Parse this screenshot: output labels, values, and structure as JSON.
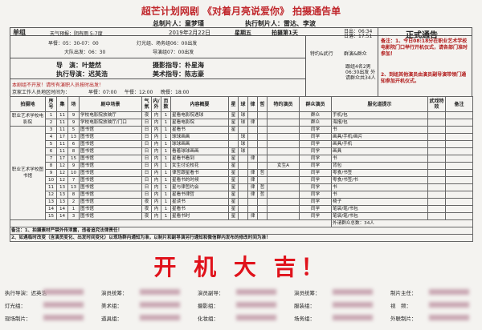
{
  "header": {
    "title": "超芒计划网剧 《对着月亮说爱你》 拍摄通告单",
    "producer": "总制片人：童梦瑾",
    "exec_producer": "执行制片人：雷达、李波"
  },
  "info": {
    "group": "单组",
    "weather": "天气预报：阴有雨 5-7度",
    "date": "2019年2月22日",
    "weekday": "星期五",
    "day": "拍摄第1天",
    "sunrise": "日出：06:34",
    "sunset": "日落：17:51",
    "status": "正式通告",
    "breakfast": "早餐：05：30-07：00",
    "crew_depart": "灯光组、场务组06：00出发",
    "team_depart": "大队出发：06：30",
    "director_depart": "导演组07：00出发",
    "director": "导　演：叶楚然",
    "dop": "摄影指导：朴星海",
    "exec_director": "执行导演：迟英浩",
    "art": "美术指导：陈志豪",
    "notice": "本剧组不开放！请所有演职人员按时出发！",
    "meal_note": "京家工作人员地区时间为：",
    "meals": [
      "早餐：07:00",
      "午餐：12:00",
      "晚餐：18:00"
    ],
    "special_head": "特约&武行",
    "extras_head": "群演&群众",
    "extras_note": "跟组4名2男 06:30出发 外请群众共34人",
    "remarks": [
      "备注：1、今日08:18分在职业艺术学校电影院门口举行开机仪式，请各部门准时参加！",
      "2、到组其他演员由演员副导演带领门通知参加开机仪式。"
    ]
  },
  "table": {
    "columns": [
      "拍摄地",
      "序号",
      "集",
      "场",
      "剧中场景",
      "气氛",
      "内/外",
      "页数",
      "内容概要",
      "星",
      "球",
      "律",
      "哲",
      "特约演员",
      "群众演员",
      "服化道提示",
      "武戏特效",
      "备注"
    ],
    "groups": [
      {
        "location": "职业艺术学校电影院",
        "rows": [
          [
            "1",
            "11",
            "9",
            "学校电影院放映厅",
            "夜",
            "内",
            "1",
            "星看电影院遇球",
            "星",
            "球",
            null,
            null,
            null,
            "群众",
            "手机/包"
          ],
          [
            "2",
            "11",
            "9",
            "学校电影院放映厅/门口",
            "日",
            "内",
            "1",
            "星看电影院",
            "星",
            "球",
            "律",
            null,
            null,
            "群众",
            "海报/包"
          ]
        ]
      },
      {
        "location": "职业艺术学校图书馆",
        "rows": [
          [
            "3",
            "11",
            "5",
            "图书馆",
            "日",
            "内",
            "1",
            "星看书",
            "星",
            null,
            null,
            null,
            null,
            "同学",
            "书"
          ],
          [
            "4",
            "17",
            "13",
            "图书馆",
            "日",
            "内",
            "1",
            "球球画画",
            null,
            "球",
            null,
            null,
            null,
            "同学",
            "画具/手机/画片"
          ],
          [
            "5",
            "11",
            "6",
            "图书馆",
            "日",
            "内",
            "1",
            "球球画画",
            null,
            "球",
            null,
            null,
            null,
            "同学",
            "画具/手机"
          ],
          [
            "6",
            "11",
            "8",
            "图书馆",
            "日",
            "内",
            "1",
            "看着球球画画",
            "星",
            "球",
            null,
            null,
            null,
            "同学",
            "画具"
          ],
          [
            "7",
            "17",
            "15",
            "图书馆",
            "日",
            "内",
            "1",
            "星看书看到",
            "星",
            null,
            "律",
            null,
            null,
            "同学",
            "书"
          ],
          [
            "8",
            "12",
            "9",
            "图书馆",
            "日",
            "内",
            "1",
            "女生讨论校花",
            "星",
            null,
            null,
            null,
            "女生A",
            "同学",
            "背包"
          ],
          [
            "9",
            "12",
            "10",
            "图书馆",
            "日",
            "内",
            "1",
            "律哲跟星看书",
            "星",
            null,
            "律",
            "哲",
            null,
            "同学",
            "零食/书签"
          ],
          [
            "10",
            "12",
            "7",
            "图书馆",
            "日",
            "内",
            "1",
            "星看书的时候",
            "星",
            null,
            "律",
            null,
            null,
            "同学",
            "零食/书签/书"
          ],
          [
            "11",
            "13",
            "13",
            "图书馆",
            "日",
            "内",
            "1",
            "星与律哲约会",
            "星",
            null,
            "律",
            "哲",
            null,
            "同学",
            "书"
          ],
          [
            "12",
            "13",
            "8",
            "图书馆",
            "日",
            "内",
            "1",
            "星看书律哲",
            "星",
            null,
            "律",
            "哲",
            null,
            "同学",
            "书"
          ],
          [
            "13",
            "13",
            "2",
            "图书馆",
            "夜",
            "内",
            "1",
            "星读书",
            "星",
            null,
            null,
            null,
            null,
            "同学",
            "椅子"
          ],
          [
            "14",
            "14",
            "1",
            "图书馆",
            "夜",
            "内",
            "1",
            "星看书",
            "星",
            null,
            null,
            null,
            null,
            "同学",
            "笔袋/笔/书包"
          ],
          [
            "15",
            "14",
            "3",
            "图书馆",
            "夜",
            "内",
            "1",
            "星看书时",
            "星",
            null,
            "律",
            null,
            null,
            "同学",
            "笔袋/笔/书包"
          ]
        ]
      }
    ]
  },
  "footer": {
    "extras_total": "外请群众总数：34人",
    "notes": [
      "备注：1、拍摄素材严禁外传泄露，违者追究法律责任！",
      "2、如遇临时改变（含演员变化、出发时间变化）以现场群内通知为准，以制片和副导演另行通知和微信群内发布的修改时间为准！"
    ]
  },
  "banner": "开 机 大 吉！",
  "contacts": [
    "执行导演：迟英浩",
    "演员统筹：",
    "演员副导：",
    "演员统筹：",
    "制片主任：",
    "灯光组：",
    "美术组：",
    "摄影组：",
    "服装组：",
    "视　频：",
    "现场制片：",
    "道具组：",
    "化妆组：",
    "场务组：",
    "外联制片："
  ]
}
